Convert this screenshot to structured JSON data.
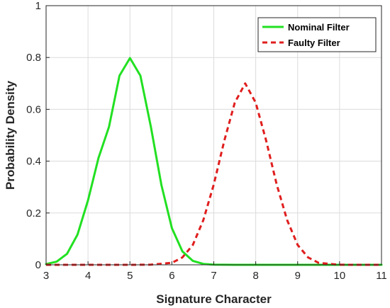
{
  "chart_data": {
    "type": "line",
    "xlabel": "Signature Character",
    "ylabel": "Probability Density",
    "xlim": [
      3,
      11
    ],
    "ylim": [
      0,
      1
    ],
    "xticks": [
      "3",
      "4",
      "5",
      "6",
      "7",
      "8",
      "9",
      "10",
      "11"
    ],
    "yticks": [
      "0",
      "0.2",
      "0.4",
      "0.6",
      "0.8",
      "1"
    ],
    "grid": true,
    "legend_position": "top-right",
    "series": [
      {
        "name": "Nominal Filter",
        "color": "#22e022",
        "style": "solid",
        "x": [
          3.0,
          3.25,
          3.5,
          3.75,
          4.0,
          4.25,
          4.5,
          4.75,
          5.0,
          5.25,
          5.5,
          5.75,
          6.0,
          6.25,
          6.5,
          6.75,
          7.0,
          7.5,
          8.0,
          8.5,
          9.0,
          9.5,
          10.0,
          10.5,
          11.0
        ],
        "y": [
          0.0027,
          0.0121,
          0.0426,
          0.1166,
          0.2486,
          0.4122,
          0.5323,
          0.7298,
          0.7979,
          0.7298,
          0.5323,
          0.3082,
          0.1418,
          0.052,
          0.0152,
          0.0035,
          0.0006,
          0.0,
          0.0,
          0.0,
          0.0,
          0.0,
          0.0,
          0.0,
          0.0
        ]
      },
      {
        "name": "Faulty Filter",
        "color": "#e01e1e",
        "style": "dashed",
        "x": [
          3.0,
          4.0,
          5.0,
          5.5,
          6.0,
          6.25,
          6.5,
          6.75,
          7.0,
          7.25,
          7.5,
          7.75,
          8.0,
          8.25,
          8.5,
          8.75,
          9.0,
          9.25,
          9.5,
          10.0,
          10.5,
          11.0
        ],
        "y": [
          0.0,
          0.0,
          0.0,
          0.0005,
          0.0077,
          0.0283,
          0.0764,
          0.172,
          0.31,
          0.4787,
          0.6256,
          0.7,
          0.6256,
          0.4787,
          0.31,
          0.172,
          0.0764,
          0.0283,
          0.0077,
          0.0002,
          0.0,
          0.0
        ]
      }
    ]
  }
}
